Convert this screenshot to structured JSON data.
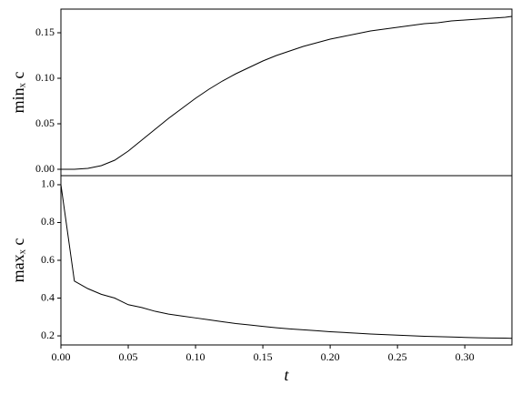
{
  "chart_data": [
    {
      "type": "line",
      "y_label": "minₓ c",
      "x": [
        0,
        0.01,
        0.02,
        0.03,
        0.04,
        0.05,
        0.06,
        0.07,
        0.08,
        0.09,
        0.1,
        0.11,
        0.12,
        0.13,
        0.14,
        0.15,
        0.16,
        0.17,
        0.18,
        0.19,
        0.2,
        0.21,
        0.22,
        0.23,
        0.24,
        0.25,
        0.26,
        0.27,
        0.28,
        0.29,
        0.3,
        0.31,
        0.32,
        0.33,
        0.335
      ],
      "series": [
        {
          "color": "#000000",
          "values": [
            0,
            0,
            0.001,
            0.004,
            0.01,
            0.02,
            0.032,
            0.044,
            0.056,
            0.067,
            0.078,
            0.088,
            0.097,
            0.105,
            0.112,
            0.119,
            0.125,
            0.13,
            0.135,
            0.139,
            0.143,
            0.146,
            0.149,
            0.152,
            0.154,
            0.156,
            0.158,
            0.16,
            0.161,
            0.163,
            0.164,
            0.165,
            0.166,
            0.167,
            0.168
          ]
        }
      ],
      "xlim": [
        0,
        0.335
      ],
      "ylim": [
        -0.007,
        0.176
      ],
      "yticks": [
        {
          "value": 0,
          "label": "0.00"
        },
        {
          "value": 0.05,
          "label": "0.05"
        },
        {
          "value": 0.1,
          "label": "0.10"
        },
        {
          "value": 0.15,
          "label": "0.15"
        }
      ]
    },
    {
      "type": "line",
      "y_label": "maxₓ c",
      "x_label": "t",
      "x": [
        0,
        0.01,
        0.02,
        0.03,
        0.04,
        0.05,
        0.06,
        0.07,
        0.08,
        0.09,
        0.1,
        0.11,
        0.12,
        0.13,
        0.14,
        0.15,
        0.16,
        0.17,
        0.18,
        0.19,
        0.2,
        0.21,
        0.22,
        0.23,
        0.24,
        0.25,
        0.26,
        0.27,
        0.28,
        0.29,
        0.3,
        0.31,
        0.32,
        0.33,
        0.335
      ],
      "series": [
        {
          "color": "#000000",
          "values": [
            1.0,
            0.49,
            0.45,
            0.42,
            0.4,
            0.365,
            0.35,
            0.33,
            0.315,
            0.305,
            0.295,
            0.285,
            0.275,
            0.265,
            0.258,
            0.25,
            0.243,
            0.237,
            0.232,
            0.227,
            0.222,
            0.218,
            0.214,
            0.21,
            0.207,
            0.204,
            0.201,
            0.198,
            0.196,
            0.194,
            0.192,
            0.19,
            0.189,
            0.188,
            0.187
          ]
        }
      ],
      "xlim": [
        0,
        0.335
      ],
      "ylim": [
        0.152,
        1.048
      ],
      "xticks": [
        {
          "value": 0,
          "label": "0.00"
        },
        {
          "value": 0.05,
          "label": "0.05"
        },
        {
          "value": 0.1,
          "label": "0.10"
        },
        {
          "value": 0.15,
          "label": "0.15"
        },
        {
          "value": 0.2,
          "label": "0.20"
        },
        {
          "value": 0.25,
          "label": "0.25"
        },
        {
          "value": 0.3,
          "label": "0.30"
        }
      ],
      "yticks": [
        {
          "value": 0.2,
          "label": "0.2"
        },
        {
          "value": 0.4,
          "label": "0.4"
        },
        {
          "value": 0.6,
          "label": "0.6"
        },
        {
          "value": 0.8,
          "label": "0.8"
        },
        {
          "value": 1.0,
          "label": "1.0"
        }
      ]
    }
  ]
}
